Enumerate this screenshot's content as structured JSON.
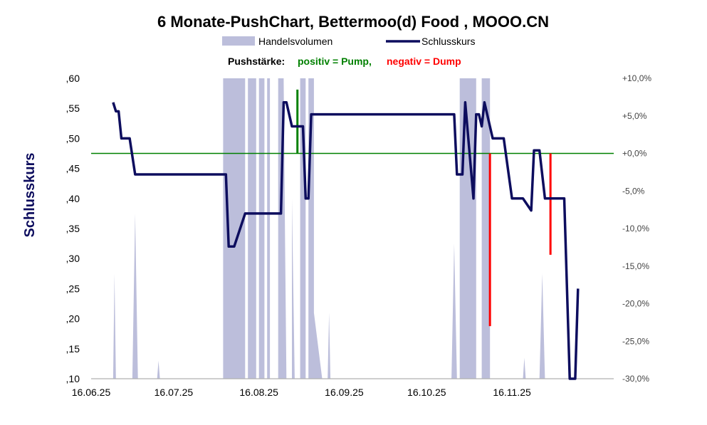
{
  "chart_data": {
    "type": "line",
    "title": "6 Monate-PushChart, Bettermoo(d) Food , MOOO.CN",
    "legend": {
      "volume_label": "Handelsvolumen",
      "close_label": "Schlusskurs",
      "push_prefix": "Pushstärke:",
      "push_positive": "positiv = Pump,",
      "push_negative": "negativ = Dump"
    },
    "ylabel": "Schlusskurs",
    "ylim": [
      0.1,
      0.6
    ],
    "y_ticks": [
      ",10",
      ",15",
      ",20",
      ",25",
      ",30",
      ",35",
      ",40",
      ",45",
      ",50",
      ",55",
      ",60"
    ],
    "y_tick_values": [
      0.1,
      0.15,
      0.2,
      0.25,
      0.3,
      0.35,
      0.4,
      0.45,
      0.5,
      0.55,
      0.6
    ],
    "y2lim": [
      -30,
      10
    ],
    "y2_ticks": [
      "-30,0%",
      "-25,0%",
      "-20,0%",
      "-15,0%",
      "-10,0%",
      "-5,0%",
      "+0,0%",
      "+5,0%",
      "+10,0%"
    ],
    "y2_tick_values": [
      -30,
      -25,
      -20,
      -15,
      -10,
      -5,
      0,
      5,
      10
    ],
    "xlim": [
      0,
      190
    ],
    "x_ticks": [
      "16.06.25",
      "16.07.25",
      "16.08.25",
      "16.09.25",
      "16.10.25",
      "16.11.25"
    ],
    "x_tick_values": [
      0,
      30,
      61,
      92,
      122,
      153
    ],
    "colors": {
      "close": "#0d0d5e",
      "volume": "#bcbedb",
      "baseline": "#008000",
      "pump": "#008000",
      "dump": "#ff0000",
      "axis": "#b0b0b0"
    },
    "close_series": [
      [
        8,
        0.56
      ],
      [
        9,
        0.545
      ],
      [
        10,
        0.545
      ],
      [
        11,
        0.5
      ],
      [
        14,
        0.5
      ],
      [
        16,
        0.44
      ],
      [
        49,
        0.44
      ],
      [
        50,
        0.32
      ],
      [
        52,
        0.32
      ],
      [
        56,
        0.375
      ],
      [
        69,
        0.375
      ],
      [
        70,
        0.56
      ],
      [
        71,
        0.56
      ],
      [
        73,
        0.52
      ],
      [
        77,
        0.52
      ],
      [
        78,
        0.4
      ],
      [
        79,
        0.4
      ],
      [
        80,
        0.54
      ],
      [
        132,
        0.54
      ],
      [
        133,
        0.44
      ],
      [
        135,
        0.44
      ],
      [
        136,
        0.56
      ],
      [
        139,
        0.4
      ],
      [
        140,
        0.54
      ],
      [
        141,
        0.54
      ],
      [
        142,
        0.52
      ],
      [
        143,
        0.56
      ],
      [
        146,
        0.5
      ],
      [
        150,
        0.5
      ],
      [
        153,
        0.4
      ],
      [
        157,
        0.4
      ],
      [
        160,
        0.38
      ],
      [
        161,
        0.48
      ],
      [
        163,
        0.48
      ],
      [
        165,
        0.4
      ],
      [
        172,
        0.4
      ],
      [
        174,
        0.1
      ],
      [
        176,
        0.1
      ],
      [
        177,
        0.25
      ]
    ],
    "volume_series": [
      [
        8,
        0.0
      ],
      [
        8.5,
        0.35
      ],
      [
        9,
        0.0
      ],
      [
        15,
        0.0
      ],
      [
        16,
        0.55
      ],
      [
        17,
        0.0
      ],
      [
        24,
        0.0
      ],
      [
        24.5,
        0.06
      ],
      [
        25,
        0.0
      ],
      [
        48,
        0.0
      ],
      [
        48,
        1.0
      ],
      [
        56,
        1.0
      ],
      [
        56,
        0.0
      ],
      [
        57,
        0.0
      ],
      [
        57,
        1.0
      ],
      [
        60,
        1.0
      ],
      [
        60,
        0.0
      ],
      [
        61,
        0.0
      ],
      [
        61,
        1.0
      ],
      [
        63,
        1.0
      ],
      [
        63,
        0.0
      ],
      [
        64,
        0.0
      ],
      [
        64,
        1.0
      ],
      [
        65,
        1.0
      ],
      [
        65,
        0.0
      ],
      [
        68,
        0.0
      ],
      [
        68,
        1.0
      ],
      [
        70,
        1.0
      ],
      [
        70.5,
        0.45
      ],
      [
        71,
        0.0
      ],
      [
        73,
        0.0
      ],
      [
        73,
        0.6
      ],
      [
        74,
        0.0
      ],
      [
        76,
        0.0
      ],
      [
        76,
        1.0
      ],
      [
        78,
        1.0
      ],
      [
        78,
        0.0
      ],
      [
        79,
        0.0
      ],
      [
        79,
        1.0
      ],
      [
        81,
        1.0
      ],
      [
        81,
        0.22
      ],
      [
        84,
        0.0
      ],
      [
        86,
        0.0
      ],
      [
        86.5,
        0.22
      ],
      [
        87,
        0.0
      ],
      [
        131,
        0.0
      ],
      [
        132,
        0.45
      ],
      [
        133,
        0.0
      ],
      [
        134,
        0.0
      ],
      [
        134,
        1.0
      ],
      [
        140,
        1.0
      ],
      [
        140,
        0.0
      ],
      [
        142,
        0.0
      ],
      [
        142,
        1.0
      ],
      [
        145,
        1.0
      ],
      [
        145,
        0.0
      ],
      [
        157,
        0.0
      ],
      [
        157.5,
        0.07
      ],
      [
        158,
        0.0
      ],
      [
        163,
        0.0
      ],
      [
        164,
        0.35
      ],
      [
        165,
        0.0
      ]
    ],
    "pump_bars": [
      {
        "x": 75,
        "from": 0.0,
        "to": 8.5
      }
    ],
    "dump_bars": [
      {
        "x": 145,
        "from": 0.0,
        "to": -23.0
      },
      {
        "x": 167,
        "from": 0.0,
        "to": -13.5
      }
    ],
    "baseline_pct": 0
  }
}
